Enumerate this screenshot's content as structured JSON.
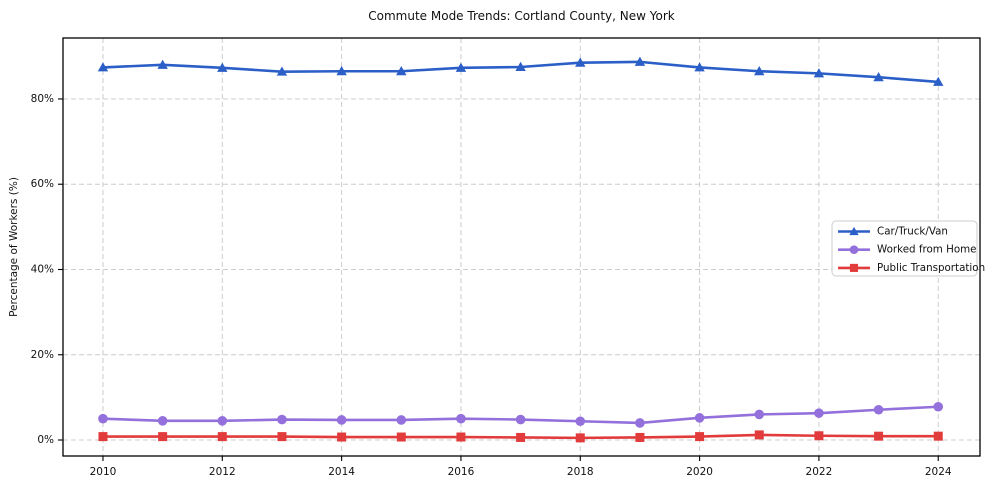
{
  "chart_data": {
    "type": "line",
    "title": "Commute Mode Trends: Cortland County, New York",
    "xlabel": "",
    "ylabel": "Percentage of Workers (%)",
    "x": [
      2010,
      2011,
      2012,
      2013,
      2014,
      2015,
      2016,
      2017,
      2018,
      2019,
      2020,
      2021,
      2022,
      2023,
      2024
    ],
    "series": [
      {
        "name": "Car/Truck/Van",
        "color": "#2b5fc7",
        "marker": "triangle",
        "values": [
          87.4,
          88.0,
          87.3,
          86.4,
          86.5,
          86.5,
          87.3,
          87.5,
          88.5,
          88.7,
          87.4,
          86.5,
          86.0,
          85.1,
          84.0
        ]
      },
      {
        "name": "Worked from Home",
        "color": "#9370db",
        "marker": "circle",
        "values": [
          5.0,
          4.5,
          4.5,
          4.8,
          4.7,
          4.7,
          5.0,
          4.8,
          4.4,
          4.0,
          5.2,
          6.0,
          6.3,
          7.1,
          7.8
        ]
      },
      {
        "name": "Public Transportation",
        "color": "#e23b3b",
        "marker": "square",
        "values": [
          0.8,
          0.8,
          0.8,
          0.8,
          0.7,
          0.7,
          0.7,
          0.6,
          0.5,
          0.6,
          0.8,
          1.2,
          1.0,
          0.9,
          0.9
        ]
      }
    ],
    "xticks": [
      2010,
      2012,
      2014,
      2016,
      2018,
      2020,
      2022,
      2024
    ],
    "yticks": [
      0,
      20,
      40,
      60,
      80
    ],
    "ytick_suffix": "%",
    "xlim": [
      2009.33,
      2024.7
    ],
    "ylim": [
      -3.75,
      94.3
    ],
    "grid": true,
    "grid_color": "#cccccc",
    "spine_color": "#000000",
    "legend": {
      "position": "center-right",
      "entries": [
        "Car/Truck/Van",
        "Worked from Home",
        "Public Transportation"
      ],
      "border_color": "#cccccc",
      "background": "#ffffff"
    }
  }
}
